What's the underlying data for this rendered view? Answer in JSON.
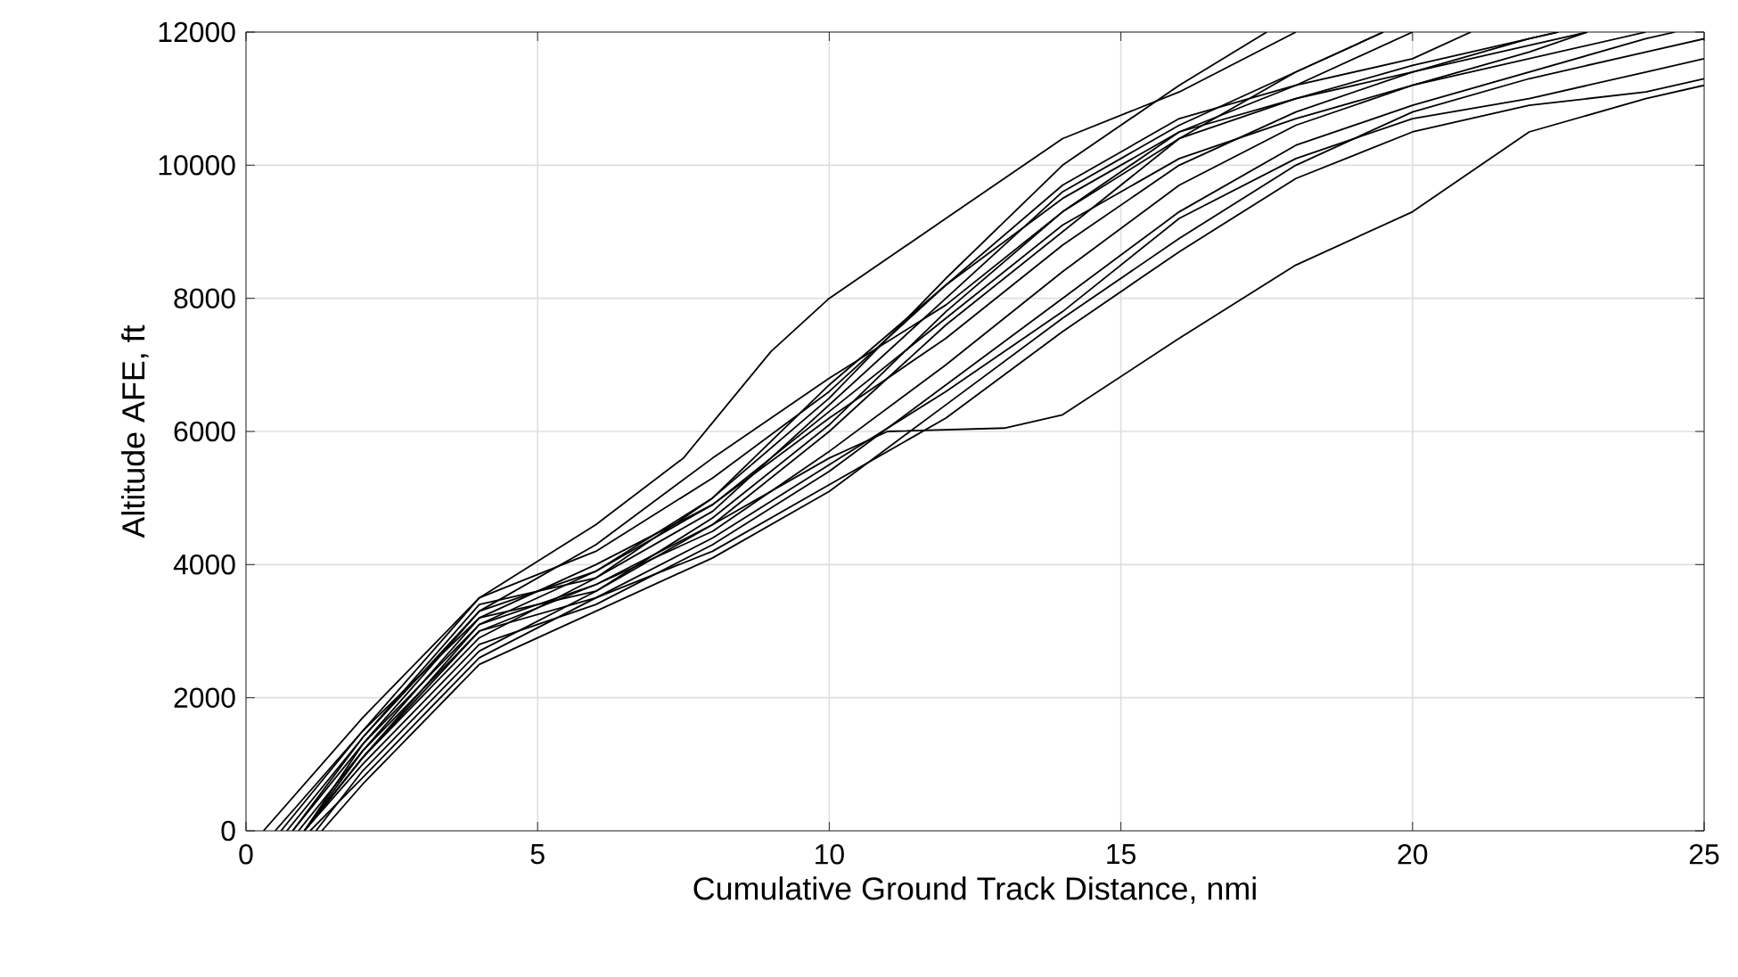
{
  "chart_data": {
    "type": "line",
    "xlabel": "Cumulative Ground Track Distance, nmi",
    "ylabel": "Altitude AFE, ft",
    "xlim": [
      0,
      25
    ],
    "xticks": [
      0,
      5,
      10,
      15,
      20,
      25
    ],
    "ylim": [
      0,
      12000
    ],
    "yticks": [
      0,
      2000,
      4000,
      6000,
      8000,
      10000,
      12000
    ],
    "grid": true,
    "marker": "none",
    "line_style": "solid",
    "series": [
      {
        "color": "#000000",
        "x": [
          0.3,
          2,
          4,
          6,
          7.5,
          9,
          10,
          12,
          14,
          16,
          18
        ],
        "values": [
          0,
          1700,
          3500,
          4600,
          5600,
          7200,
          8000,
          9200,
          10400,
          11100,
          12000
        ]
      },
      {
        "color": "#000000",
        "x": [
          1,
          2,
          4,
          6,
          8,
          10,
          12,
          14,
          16,
          17.5
        ],
        "values": [
          0,
          1300,
          3300,
          3900,
          5000,
          6500,
          8300,
          10000,
          11200,
          12000
        ]
      },
      {
        "color": "#000000",
        "x": [
          0.8,
          2,
          4,
          6,
          8,
          10,
          12,
          14,
          16,
          18,
          19.5
        ],
        "values": [
          0,
          1400,
          3400,
          3800,
          4800,
          6400,
          8000,
          9600,
          10600,
          11400,
          12000
        ]
      },
      {
        "color": "#000000",
        "x": [
          1,
          2,
          4,
          6,
          8,
          10,
          12,
          14,
          16,
          18,
          20
        ],
        "values": [
          0,
          1100,
          2900,
          3800,
          5000,
          6700,
          8200,
          9500,
          10500,
          11200,
          12000
        ]
      },
      {
        "color": "#000000",
        "x": [
          1.2,
          2,
          4,
          6,
          8,
          10,
          12,
          14,
          16,
          18,
          19.5
        ],
        "values": [
          0,
          900,
          2700,
          3600,
          4600,
          6000,
          7600,
          9000,
          10400,
          11400,
          12000
        ]
      },
      {
        "color": "#000000",
        "x": [
          0.5,
          2,
          4,
          6,
          8,
          10,
          12,
          14,
          16,
          18,
          20,
          22,
          22.5
        ],
        "values": [
          0,
          1500,
          3200,
          4000,
          4900,
          6200,
          7400,
          8800,
          10000,
          10800,
          11400,
          11900,
          12000
        ]
      },
      {
        "color": "#000000",
        "x": [
          0.9,
          2,
          4,
          6,
          8,
          10,
          12,
          14,
          16,
          18,
          20,
          22,
          23
        ],
        "values": [
          0,
          1200,
          3000,
          3700,
          4500,
          5700,
          7000,
          8400,
          9700,
          10600,
          11200,
          11700,
          12000
        ]
      },
      {
        "color": "#000000",
        "x": [
          1,
          2,
          4,
          6,
          8,
          10,
          12,
          14,
          16,
          18,
          20,
          22,
          24,
          24.5
        ],
        "values": [
          0,
          1000,
          2800,
          3400,
          4300,
          5400,
          6700,
          8000,
          9300,
          10300,
          10900,
          11400,
          11900,
          12000
        ]
      },
      {
        "color": "#000000",
        "x": [
          1,
          2,
          4,
          6,
          8,
          10,
          11,
          13,
          14,
          16,
          18,
          20,
          22,
          24,
          25
        ],
        "values": [
          0,
          1100,
          3100,
          3700,
          4600,
          5600,
          6000,
          6050,
          6250,
          7400,
          8500,
          9300,
          10500,
          11000,
          11200
        ]
      },
      {
        "color": "#000000",
        "x": [
          1.1,
          2,
          4,
          6,
          8,
          10,
          12,
          14,
          16,
          18,
          20,
          22,
          24,
          25
        ],
        "values": [
          0,
          800,
          2600,
          3500,
          4200,
          5200,
          6200,
          7500,
          8700,
          9800,
          10500,
          10900,
          11100,
          11300
        ]
      },
      {
        "color": "#000000",
        "x": [
          1,
          2,
          4,
          6,
          8,
          10,
          12,
          14,
          16,
          18,
          20,
          22,
          24,
          25
        ],
        "values": [
          0,
          1100,
          3000,
          3500,
          4400,
          5500,
          6600,
          7800,
          9200,
          10100,
          10700,
          11000,
          11400,
          11600
        ]
      },
      {
        "color": "#000000",
        "x": [
          0.7,
          2,
          4,
          6,
          8,
          10,
          12,
          14,
          16,
          18,
          20,
          22,
          23
        ],
        "values": [
          0,
          1400,
          3300,
          4300,
          5600,
          6800,
          7900,
          9300,
          10500,
          11000,
          11400,
          11800,
          12000
        ]
      },
      {
        "color": "#000000",
        "x": [
          0.6,
          2,
          4,
          6,
          8,
          10,
          12,
          14,
          16,
          18,
          20,
          21
        ],
        "values": [
          0,
          1500,
          3500,
          4200,
          5300,
          6600,
          8200,
          9700,
          10700,
          11200,
          11600,
          12000
        ]
      },
      {
        "color": "#000000",
        "x": [
          1,
          2,
          4,
          6,
          8,
          10,
          12,
          14,
          16,
          18,
          20,
          22,
          22.5
        ],
        "values": [
          0,
          1200,
          3200,
          3600,
          4700,
          6100,
          7800,
          9300,
          10400,
          11000,
          11500,
          11900,
          12000
        ]
      },
      {
        "color": "#000000",
        "x": [
          1.3,
          2,
          4,
          6,
          8,
          10,
          12,
          14,
          16,
          18,
          20,
          22,
          24,
          25
        ],
        "values": [
          0,
          700,
          2500,
          3300,
          4100,
          5100,
          6400,
          7700,
          8900,
          10000,
          10800,
          11300,
          11700,
          11900
        ]
      },
      {
        "color": "#000000",
        "x": [
          0.8,
          2,
          4,
          6,
          8,
          10,
          12,
          14,
          16,
          18,
          20,
          22,
          24
        ],
        "values": [
          0,
          1300,
          3100,
          3900,
          4900,
          6300,
          7700,
          9100,
          10100,
          10700,
          11200,
          11600,
          12000
        ]
      }
    ]
  }
}
